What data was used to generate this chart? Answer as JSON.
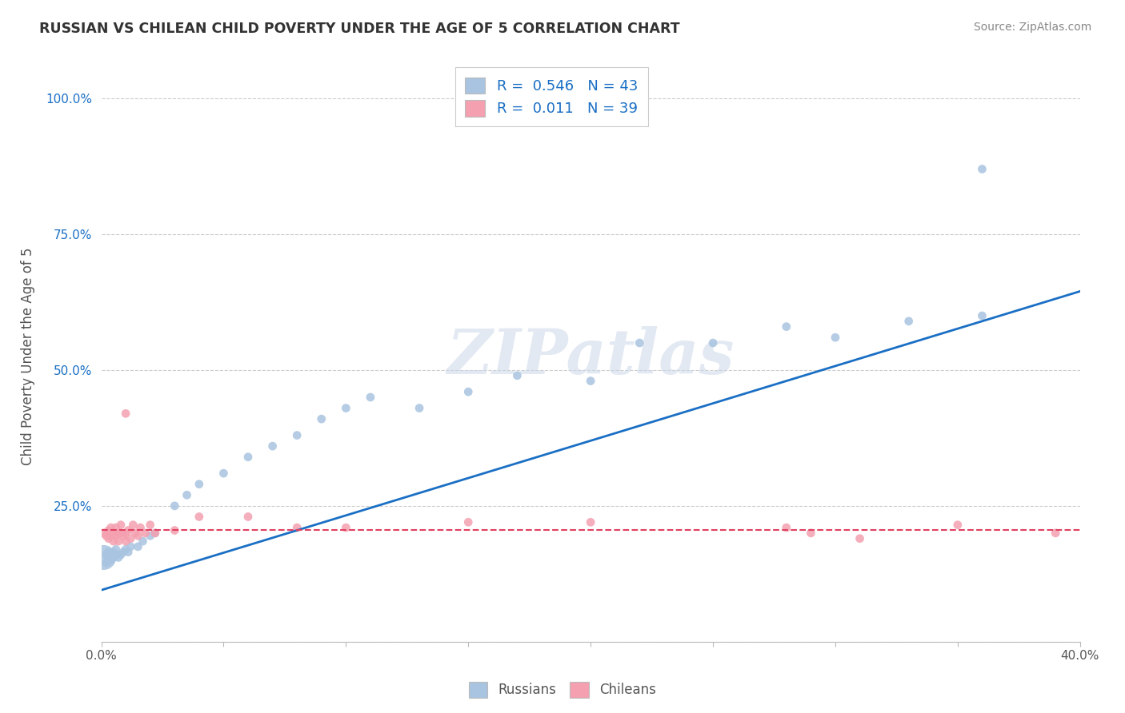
{
  "title": "RUSSIAN VS CHILEAN CHILD POVERTY UNDER THE AGE OF 5 CORRELATION CHART",
  "source": "Source: ZipAtlas.com",
  "ylabel": "Child Poverty Under the Age of 5",
  "xlim": [
    0.0,
    0.4
  ],
  "ylim": [
    0.0,
    1.05
  ],
  "russian_R": 0.546,
  "russian_N": 43,
  "chilean_R": 0.011,
  "chilean_N": 39,
  "russian_color": "#a8c4e0",
  "chilean_color": "#f4a0b0",
  "russian_line_color": "#1a6fc4",
  "chilean_line_color": "#e04060",
  "background_color": "#ffffff",
  "grid_color": "#cccccc",
  "russians_x": [
    0.001,
    0.002,
    0.002,
    0.003,
    0.003,
    0.003,
    0.004,
    0.004,
    0.005,
    0.005,
    0.006,
    0.006,
    0.007,
    0.008,
    0.009,
    0.01,
    0.011,
    0.012,
    0.015,
    0.017,
    0.02,
    0.022,
    0.03,
    0.035,
    0.04,
    0.05,
    0.06,
    0.07,
    0.08,
    0.09,
    0.1,
    0.11,
    0.13,
    0.15,
    0.17,
    0.2,
    0.22,
    0.25,
    0.28,
    0.3,
    0.33,
    0.36,
    0.36
  ],
  "russians_y": [
    0.155,
    0.145,
    0.16,
    0.15,
    0.155,
    0.165,
    0.15,
    0.16,
    0.155,
    0.165,
    0.16,
    0.17,
    0.155,
    0.16,
    0.165,
    0.17,
    0.165,
    0.175,
    0.175,
    0.185,
    0.195,
    0.2,
    0.25,
    0.27,
    0.29,
    0.31,
    0.34,
    0.36,
    0.38,
    0.41,
    0.43,
    0.45,
    0.43,
    0.46,
    0.49,
    0.48,
    0.55,
    0.55,
    0.58,
    0.56,
    0.59,
    0.87,
    0.6
  ],
  "russians_sizes": [
    500,
    60,
    60,
    60,
    60,
    60,
    60,
    60,
    60,
    60,
    60,
    60,
    60,
    60,
    60,
    60,
    60,
    60,
    60,
    60,
    60,
    60,
    60,
    60,
    60,
    60,
    60,
    60,
    60,
    60,
    60,
    60,
    60,
    60,
    60,
    60,
    60,
    60,
    60,
    60,
    60,
    60,
    60
  ],
  "chileans_x": [
    0.001,
    0.002,
    0.003,
    0.003,
    0.004,
    0.004,
    0.005,
    0.005,
    0.006,
    0.006,
    0.007,
    0.007,
    0.008,
    0.008,
    0.009,
    0.01,
    0.01,
    0.011,
    0.012,
    0.013,
    0.014,
    0.015,
    0.016,
    0.018,
    0.02,
    0.022,
    0.03,
    0.04,
    0.06,
    0.08,
    0.1,
    0.15,
    0.2,
    0.28,
    0.29,
    0.31,
    0.35,
    0.39,
    0.01
  ],
  "chileans_y": [
    0.2,
    0.195,
    0.205,
    0.19,
    0.195,
    0.21,
    0.2,
    0.185,
    0.21,
    0.195,
    0.2,
    0.185,
    0.2,
    0.215,
    0.195,
    0.2,
    0.185,
    0.205,
    0.19,
    0.215,
    0.2,
    0.195,
    0.21,
    0.2,
    0.215,
    0.2,
    0.205,
    0.23,
    0.23,
    0.21,
    0.21,
    0.22,
    0.22,
    0.21,
    0.2,
    0.19,
    0.215,
    0.2,
    0.42
  ],
  "chileans_sizes": [
    60,
    60,
    60,
    60,
    60,
    60,
    60,
    60,
    60,
    60,
    60,
    60,
    60,
    60,
    60,
    60,
    60,
    60,
    60,
    60,
    60,
    60,
    60,
    60,
    60,
    60,
    60,
    60,
    60,
    60,
    60,
    60,
    60,
    60,
    60,
    60,
    60,
    60,
    60
  ],
  "russian_line_x": [
    0.0,
    0.4
  ],
  "russian_line_y": [
    0.095,
    0.645
  ],
  "chilean_line_x": [
    0.0,
    0.4
  ],
  "chilean_line_y": [
    0.205,
    0.205
  ],
  "ytick_values": [
    0.0,
    0.25,
    0.5,
    0.75,
    1.0
  ],
  "ytick_labels": [
    "",
    "25.0%",
    "50.0%",
    "75.0%",
    "100.0%"
  ],
  "xtick_count": 9
}
